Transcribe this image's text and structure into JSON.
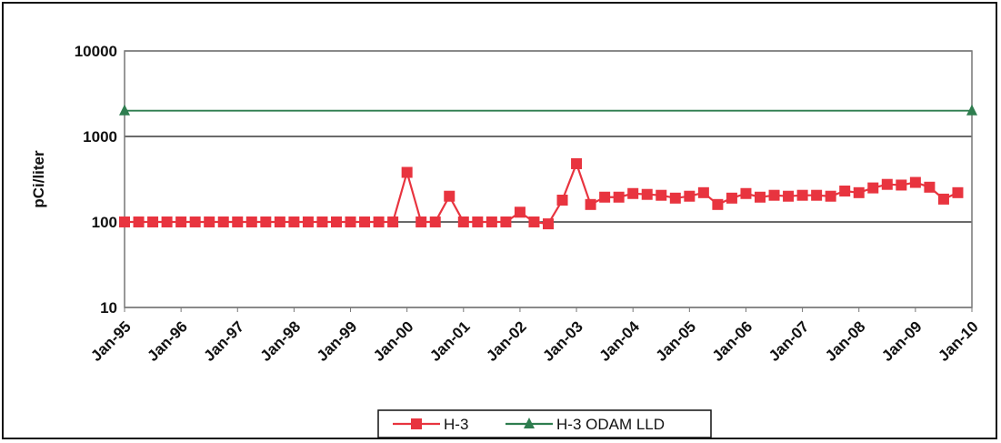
{
  "chart_data": {
    "type": "line",
    "title": "",
    "xlabel": "",
    "ylabel": "pCi/liter",
    "y_scale": "log",
    "ylim": [
      10,
      10000
    ],
    "y_ticks": [
      "10",
      "100",
      "1000",
      "10000"
    ],
    "y_tick_values": [
      10,
      100,
      1000,
      10000
    ],
    "xlim": [
      "1995-01",
      "2010-01"
    ],
    "x_ticks": [
      "Jan-95",
      "Jan-96",
      "Jan-97",
      "Jan-98",
      "Jan-99",
      "Jan-00",
      "Jan-01",
      "Jan-02",
      "Jan-03",
      "Jan-04",
      "Jan-05",
      "Jan-06",
      "Jan-07",
      "Jan-08",
      "Jan-09",
      "Jan-10"
    ],
    "grid": "horizontal",
    "legend_position": "bottom",
    "series": [
      {
        "name": "H-3",
        "color": "#e8343f",
        "marker": "square",
        "points": [
          [
            "1995-01",
            100
          ],
          [
            "1995-04",
            100
          ],
          [
            "1995-07",
            100
          ],
          [
            "1995-10",
            100
          ],
          [
            "1996-01",
            100
          ],
          [
            "1996-04",
            100
          ],
          [
            "1996-07",
            100
          ],
          [
            "1996-10",
            100
          ],
          [
            "1997-01",
            100
          ],
          [
            "1997-04",
            100
          ],
          [
            "1997-07",
            100
          ],
          [
            "1997-10",
            100
          ],
          [
            "1998-01",
            100
          ],
          [
            "1998-04",
            100
          ],
          [
            "1998-07",
            100
          ],
          [
            "1998-10",
            100
          ],
          [
            "1999-01",
            100
          ],
          [
            "1999-04",
            100
          ],
          [
            "1999-07",
            100
          ],
          [
            "1999-10",
            100
          ],
          [
            "2000-01",
            380
          ],
          [
            "2000-04",
            100
          ],
          [
            "2000-07",
            100
          ],
          [
            "2000-10",
            200
          ],
          [
            "2001-01",
            100
          ],
          [
            "2001-04",
            100
          ],
          [
            "2001-07",
            100
          ],
          [
            "2001-10",
            100
          ],
          [
            "2002-01",
            130
          ],
          [
            "2002-04",
            100
          ],
          [
            "2002-07",
            95
          ],
          [
            "2002-10",
            180
          ],
          [
            "2003-01",
            480
          ],
          [
            "2003-04",
            160
          ],
          [
            "2003-07",
            195
          ],
          [
            "2003-10",
            195
          ],
          [
            "2004-01",
            215
          ],
          [
            "2004-04",
            210
          ],
          [
            "2004-07",
            205
          ],
          [
            "2004-10",
            190
          ],
          [
            "2005-01",
            200
          ],
          [
            "2005-04",
            220
          ],
          [
            "2005-07",
            160
          ],
          [
            "2005-10",
            190
          ],
          [
            "2006-01",
            215
          ],
          [
            "2006-04",
            195
          ],
          [
            "2006-07",
            205
          ],
          [
            "2006-10",
            200
          ],
          [
            "2007-01",
            205
          ],
          [
            "2007-04",
            205
          ],
          [
            "2007-07",
            200
          ],
          [
            "2007-10",
            230
          ],
          [
            "2008-01",
            220
          ],
          [
            "2008-04",
            250
          ],
          [
            "2008-07",
            275
          ],
          [
            "2008-10",
            270
          ],
          [
            "2009-01",
            290
          ],
          [
            "2009-04",
            255
          ],
          [
            "2009-07",
            185
          ],
          [
            "2009-10",
            220
          ]
        ]
      },
      {
        "name": "H-3 ODAM LLD",
        "color": "#2e7d4f",
        "marker": "triangle",
        "points": [
          [
            "1995-01",
            2000
          ],
          [
            "2010-01",
            2000
          ]
        ]
      }
    ]
  }
}
